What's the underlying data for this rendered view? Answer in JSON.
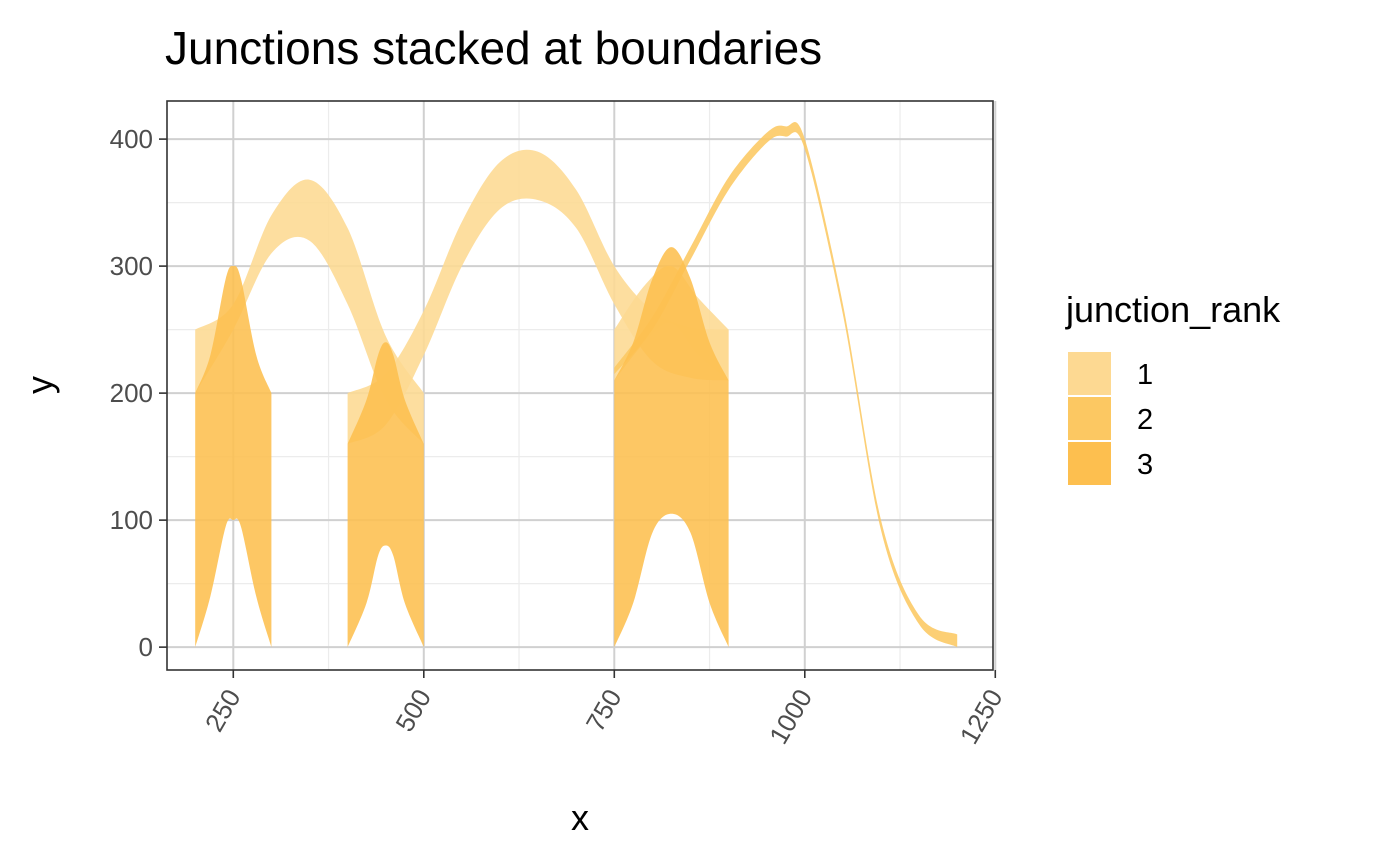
{
  "chart_data": {
    "type": "area",
    "title": "Junctions stacked at boundaries",
    "xlabel": "x",
    "ylabel": "y",
    "xlim": [
      163,
      1247
    ],
    "ylim": [
      -18,
      430
    ],
    "x_ticks": [
      250,
      500,
      750,
      1000,
      1250
    ],
    "x_tick_labels": [
      "250",
      "500",
      "750",
      "1000",
      "1250"
    ],
    "y_ticks": [
      0,
      100,
      200,
      300,
      400
    ],
    "y_tick_labels": [
      "0",
      "100",
      "200",
      "300",
      "400"
    ],
    "grid": true,
    "legend": {
      "title": "junction_rank",
      "placement": "right",
      "entries": [
        {
          "label": "1",
          "color": "#fdd992"
        },
        {
          "label": "2",
          "color": "#fcc862"
        },
        {
          "label": "3",
          "color": "#fdbf4f"
        }
      ]
    },
    "series": [
      {
        "name": "1",
        "segments": [
          {
            "x": [
              200,
              250,
              300,
              350,
              400,
              450,
              500
            ],
            "upper": [
              250,
              270,
              340,
              368,
              330,
              245,
              200
            ],
            "lower": [
              200,
              250,
              310,
              320,
              270,
              195,
              160
            ]
          },
          {
            "x": [
              750,
              790,
              825,
              860,
              900
            ],
            "upper": [
              250,
              285,
              300,
              275,
              250
            ],
            "lower": [
              210,
              240,
              255,
              230,
              210
            ]
          },
          {
            "x": [
              400,
              450,
              500,
              550,
              600,
              650,
              700,
              750,
              800,
              850,
              900
            ],
            "upper": [
              200,
              215,
              265,
              335,
              382,
              390,
              360,
              300,
              265,
              252,
              250
            ],
            "lower": [
              160,
              175,
              230,
              300,
              345,
              352,
              330,
              270,
              225,
              212,
              210
            ]
          }
        ]
      },
      {
        "name": "2",
        "segments": [
          {
            "x": [
              750,
              800,
              850,
              900,
              950,
              975,
              1000,
              1050,
              1100,
              1150,
              1200
            ],
            "upper": [
              220,
              260,
              315,
              370,
              405,
              410,
              400,
              270,
              100,
              25,
              10
            ],
            "lower": [
              215,
              250,
              305,
              360,
              397,
              402,
              392,
              262,
              92,
              18,
              0
            ]
          }
        ]
      },
      {
        "name": "3",
        "segments": [
          {
            "x": [
              200,
              220,
              240,
              250,
              260,
              280,
              300
            ],
            "upper": [
              200,
              230,
              290,
              300,
              290,
              230,
              200
            ],
            "lower": [
              0,
              40,
              95,
              100,
              95,
              40,
              0
            ]
          },
          {
            "x": [
              400,
              425,
              440,
              450,
              460,
              475,
              500
            ],
            "upper": [
              160,
              195,
              230,
              240,
              230,
              195,
              160
            ],
            "lower": [
              0,
              35,
              72,
              80,
              72,
              35,
              0
            ]
          },
          {
            "x": [
              750,
              775,
              800,
              825,
              850,
              875,
              900
            ],
            "upper": [
              210,
              240,
              290,
              315,
              290,
              240,
              210
            ],
            "lower": [
              0,
              35,
              90,
              105,
              90,
              35,
              0
            ]
          }
        ]
      }
    ]
  }
}
